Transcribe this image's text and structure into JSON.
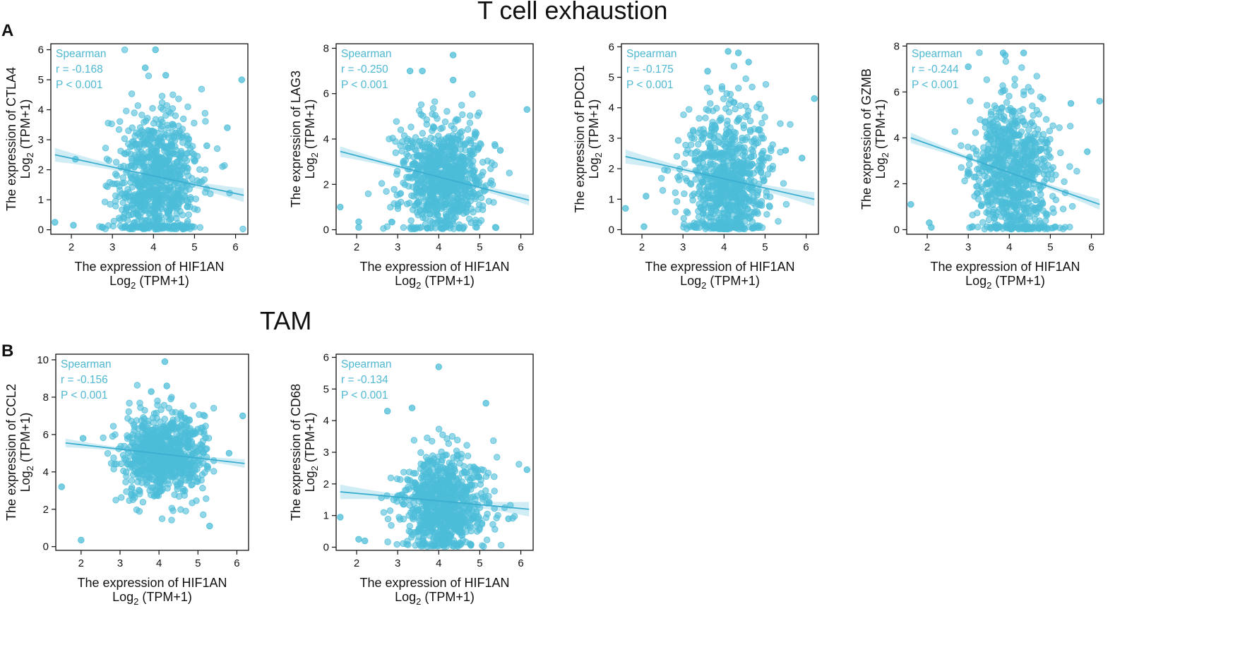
{
  "sections": [
    {
      "title": "T cell exhaustion",
      "letter": "A"
    },
    {
      "title": "TAM",
      "letter": "B"
    }
  ],
  "colors": {
    "point": "#4cbdd8",
    "line": "#3aaed0",
    "band": "#a9dcec",
    "text": "#4fb8d2"
  },
  "chart_data": [
    {
      "type": "scatter",
      "gene": "CTLA4",
      "xlabel": "The expression of HIF1AN",
      "xlabel2": "Log",
      "xlabel_sub": "2",
      "xlabel_unit": " (TPM+1)",
      "ylabel": "The expression of CTLA4",
      "ylabel2": "Log",
      "ylabel_sub": "2",
      "ylabel_unit": " (TPM+1)",
      "xlim": [
        1.5,
        6.3
      ],
      "ylim": [
        -0.15,
        6.2
      ],
      "xticks": [
        2,
        3,
        4,
        5,
        6
      ],
      "yticks": [
        0,
        1,
        2,
        3,
        4,
        5,
        6
      ],
      "method": "Spearman",
      "r_text": "r = -0.168",
      "p_text": "P < 0.001",
      "fit": {
        "x0": 1.6,
        "y0": 2.5,
        "x1": 6.2,
        "y1": 1.15
      },
      "cloud": {
        "cx": 4.1,
        "sx": 0.5,
        "cy": 1.5,
        "sy": 1.2,
        "n": 820,
        "seed": 11
      },
      "outliers": [
        [
          4.05,
          6.0
        ],
        [
          3.8,
          5.4
        ],
        [
          4.3,
          5.15
        ],
        [
          6.15,
          5.0
        ],
        [
          5.8,
          3.4
        ],
        [
          1.6,
          0.25
        ],
        [
          2.05,
          0.15
        ],
        [
          2.1,
          2.35
        ],
        [
          5.3,
          2.8
        ]
      ]
    },
    {
      "type": "scatter",
      "gene": "LAG3",
      "xlabel": "The expression of HIF1AN",
      "xlabel2": "Log",
      "xlabel_sub": "2",
      "xlabel_unit": " (TPM+1)",
      "ylabel": "The expression of LAG3",
      "ylabel2": "Log",
      "ylabel_sub": "2",
      "ylabel_unit": " (TPM+1)",
      "xlim": [
        1.5,
        6.3
      ],
      "ylim": [
        -0.2,
        8.2
      ],
      "xticks": [
        2,
        3,
        4,
        5,
        6
      ],
      "yticks": [
        0,
        2,
        4,
        6,
        8
      ],
      "method": "Spearman",
      "r_text": "r = -0.250",
      "p_text": "P < 0.001",
      "fit": {
        "x0": 1.6,
        "y0": 3.45,
        "x1": 6.2,
        "y1": 1.3
      },
      "cloud": {
        "cx": 4.1,
        "sx": 0.5,
        "cy": 2.2,
        "sy": 1.25,
        "n": 820,
        "seed": 23
      },
      "outliers": [
        [
          4.35,
          7.7
        ],
        [
          3.3,
          7.0
        ],
        [
          3.6,
          7.0
        ],
        [
          4.35,
          6.6
        ],
        [
          6.15,
          5.3
        ],
        [
          1.6,
          1.0
        ],
        [
          2.05,
          0.35
        ],
        [
          2.05,
          0.1
        ],
        [
          5.5,
          3.5
        ]
      ]
    },
    {
      "type": "scatter",
      "gene": "PDCD1",
      "xlabel": "The expression of HIF1AN",
      "xlabel2": "Log",
      "xlabel_sub": "2",
      "xlabel_unit": " (TPM+1)",
      "ylabel": "The expression of PDCD1",
      "ylabel2": "Log",
      "ylabel_sub": "2",
      "ylabel_unit": " (TPM+1)",
      "xlim": [
        1.5,
        6.3
      ],
      "ylim": [
        -0.15,
        6.1
      ],
      "xticks": [
        2,
        3,
        4,
        5,
        6
      ],
      "yticks": [
        0,
        1,
        2,
        3,
        4,
        5,
        6
      ],
      "method": "Spearman",
      "r_text": "r = -0.175",
      "p_text": "P < 0.001",
      "fit": {
        "x0": 1.6,
        "y0": 2.4,
        "x1": 6.2,
        "y1": 1.0
      },
      "cloud": {
        "cx": 4.1,
        "sx": 0.5,
        "cy": 1.5,
        "sy": 1.15,
        "n": 820,
        "seed": 37
      },
      "outliers": [
        [
          4.1,
          5.85
        ],
        [
          4.35,
          5.8
        ],
        [
          3.6,
          5.2
        ],
        [
          4.6,
          5.5
        ],
        [
          6.2,
          4.3
        ],
        [
          1.6,
          0.7
        ],
        [
          2.05,
          0.1
        ],
        [
          2.1,
          1.1
        ],
        [
          5.5,
          2.6
        ],
        [
          5.9,
          2.35
        ]
      ]
    },
    {
      "type": "scatter",
      "gene": "GZMB",
      "xlabel": "The expression of HIF1AN",
      "xlabel2": "Log",
      "xlabel_sub": "2",
      "xlabel_unit": " (TPM+1)",
      "ylabel": "The expression of GZMB",
      "ylabel2": "Log",
      "ylabel_sub": "2",
      "ylabel_unit": " (TPM+1)",
      "xlim": [
        1.5,
        6.3
      ],
      "ylim": [
        -0.2,
        8.1
      ],
      "xticks": [
        2,
        3,
        4,
        5,
        6
      ],
      "yticks": [
        0,
        2,
        4,
        6,
        8
      ],
      "method": "Spearman",
      "r_text": "r = -0.244",
      "p_text": "P < 0.001",
      "fit": {
        "x0": 1.6,
        "y0": 4.0,
        "x1": 6.2,
        "y1": 1.1
      },
      "cloud": {
        "cx": 4.1,
        "sx": 0.5,
        "cy": 2.4,
        "sy": 1.7,
        "n": 820,
        "seed": 53
      },
      "outliers": [
        [
          3.85,
          7.7
        ],
        [
          4.35,
          7.7
        ],
        [
          3.9,
          7.6
        ],
        [
          3.0,
          7.1
        ],
        [
          6.2,
          5.6
        ],
        [
          5.5,
          5.5
        ],
        [
          1.6,
          1.1
        ],
        [
          2.05,
          0.3
        ],
        [
          2.1,
          0.1
        ],
        [
          5.9,
          3.4
        ]
      ]
    },
    {
      "type": "scatter",
      "gene": "CCL2",
      "xlabel": "The expression of HIF1AN",
      "xlabel2": "Log",
      "xlabel_sub": "2",
      "xlabel_unit": " (TPM+1)",
      "ylabel": "The expression of CCL2",
      "ylabel2": "Log",
      "ylabel_sub": "2",
      "ylabel_unit": " (TPM+1)",
      "xlim": [
        1.35,
        6.3
      ],
      "ylim": [
        -0.2,
        10.3
      ],
      "xticks": [
        2,
        3,
        4,
        5,
        6
      ],
      "yticks": [
        0,
        2,
        4,
        6,
        8,
        10
      ],
      "method": "Spearman",
      "r_text": "r = -0.156",
      "p_text": "P < 0.001",
      "fit": {
        "x0": 1.6,
        "y0": 5.55,
        "x1": 6.2,
        "y1": 4.45
      },
      "cloud": {
        "cx": 4.1,
        "sx": 0.5,
        "cy": 4.9,
        "sy": 1.1,
        "n": 820,
        "seed": 71
      },
      "outliers": [
        [
          4.15,
          9.9
        ],
        [
          3.8,
          8.3
        ],
        [
          4.2,
          8.6
        ],
        [
          6.15,
          7.0
        ],
        [
          1.5,
          3.2
        ],
        [
          2.0,
          0.35
        ],
        [
          2.05,
          5.8
        ],
        [
          5.3,
          1.1
        ],
        [
          5.8,
          5.0
        ]
      ]
    },
    {
      "type": "scatter",
      "gene": "CD68",
      "xlabel": "The expression of HIF1AN",
      "xlabel2": "Log",
      "xlabel_sub": "2",
      "xlabel_unit": " (TPM+1)",
      "ylabel": "The expression of CD68",
      "ylabel2": "Log",
      "ylabel_sub": "2",
      "ylabel_unit": " (TPM+1)",
      "xlim": [
        1.5,
        6.3
      ],
      "ylim": [
        -0.1,
        6.1
      ],
      "xticks": [
        2,
        3,
        4,
        5,
        6
      ],
      "yticks": [
        0,
        1,
        2,
        3,
        4,
        5,
        6
      ],
      "method": "Spearman",
      "r_text": "r = -0.134",
      "p_text": "P < 0.001",
      "fit": {
        "x0": 1.6,
        "y0": 1.75,
        "x1": 6.2,
        "y1": 1.2
      },
      "cloud": {
        "cx": 4.1,
        "sx": 0.5,
        "cy": 1.35,
        "sy": 0.75,
        "n": 820,
        "seed": 89
      },
      "outliers": [
        [
          4.0,
          5.7
        ],
        [
          5.15,
          4.55
        ],
        [
          2.75,
          4.3
        ],
        [
          3.35,
          4.4
        ],
        [
          6.15,
          2.45
        ],
        [
          1.6,
          0.95
        ],
        [
          2.05,
          0.25
        ],
        [
          2.2,
          0.2
        ],
        [
          5.7,
          0.9
        ]
      ]
    }
  ]
}
